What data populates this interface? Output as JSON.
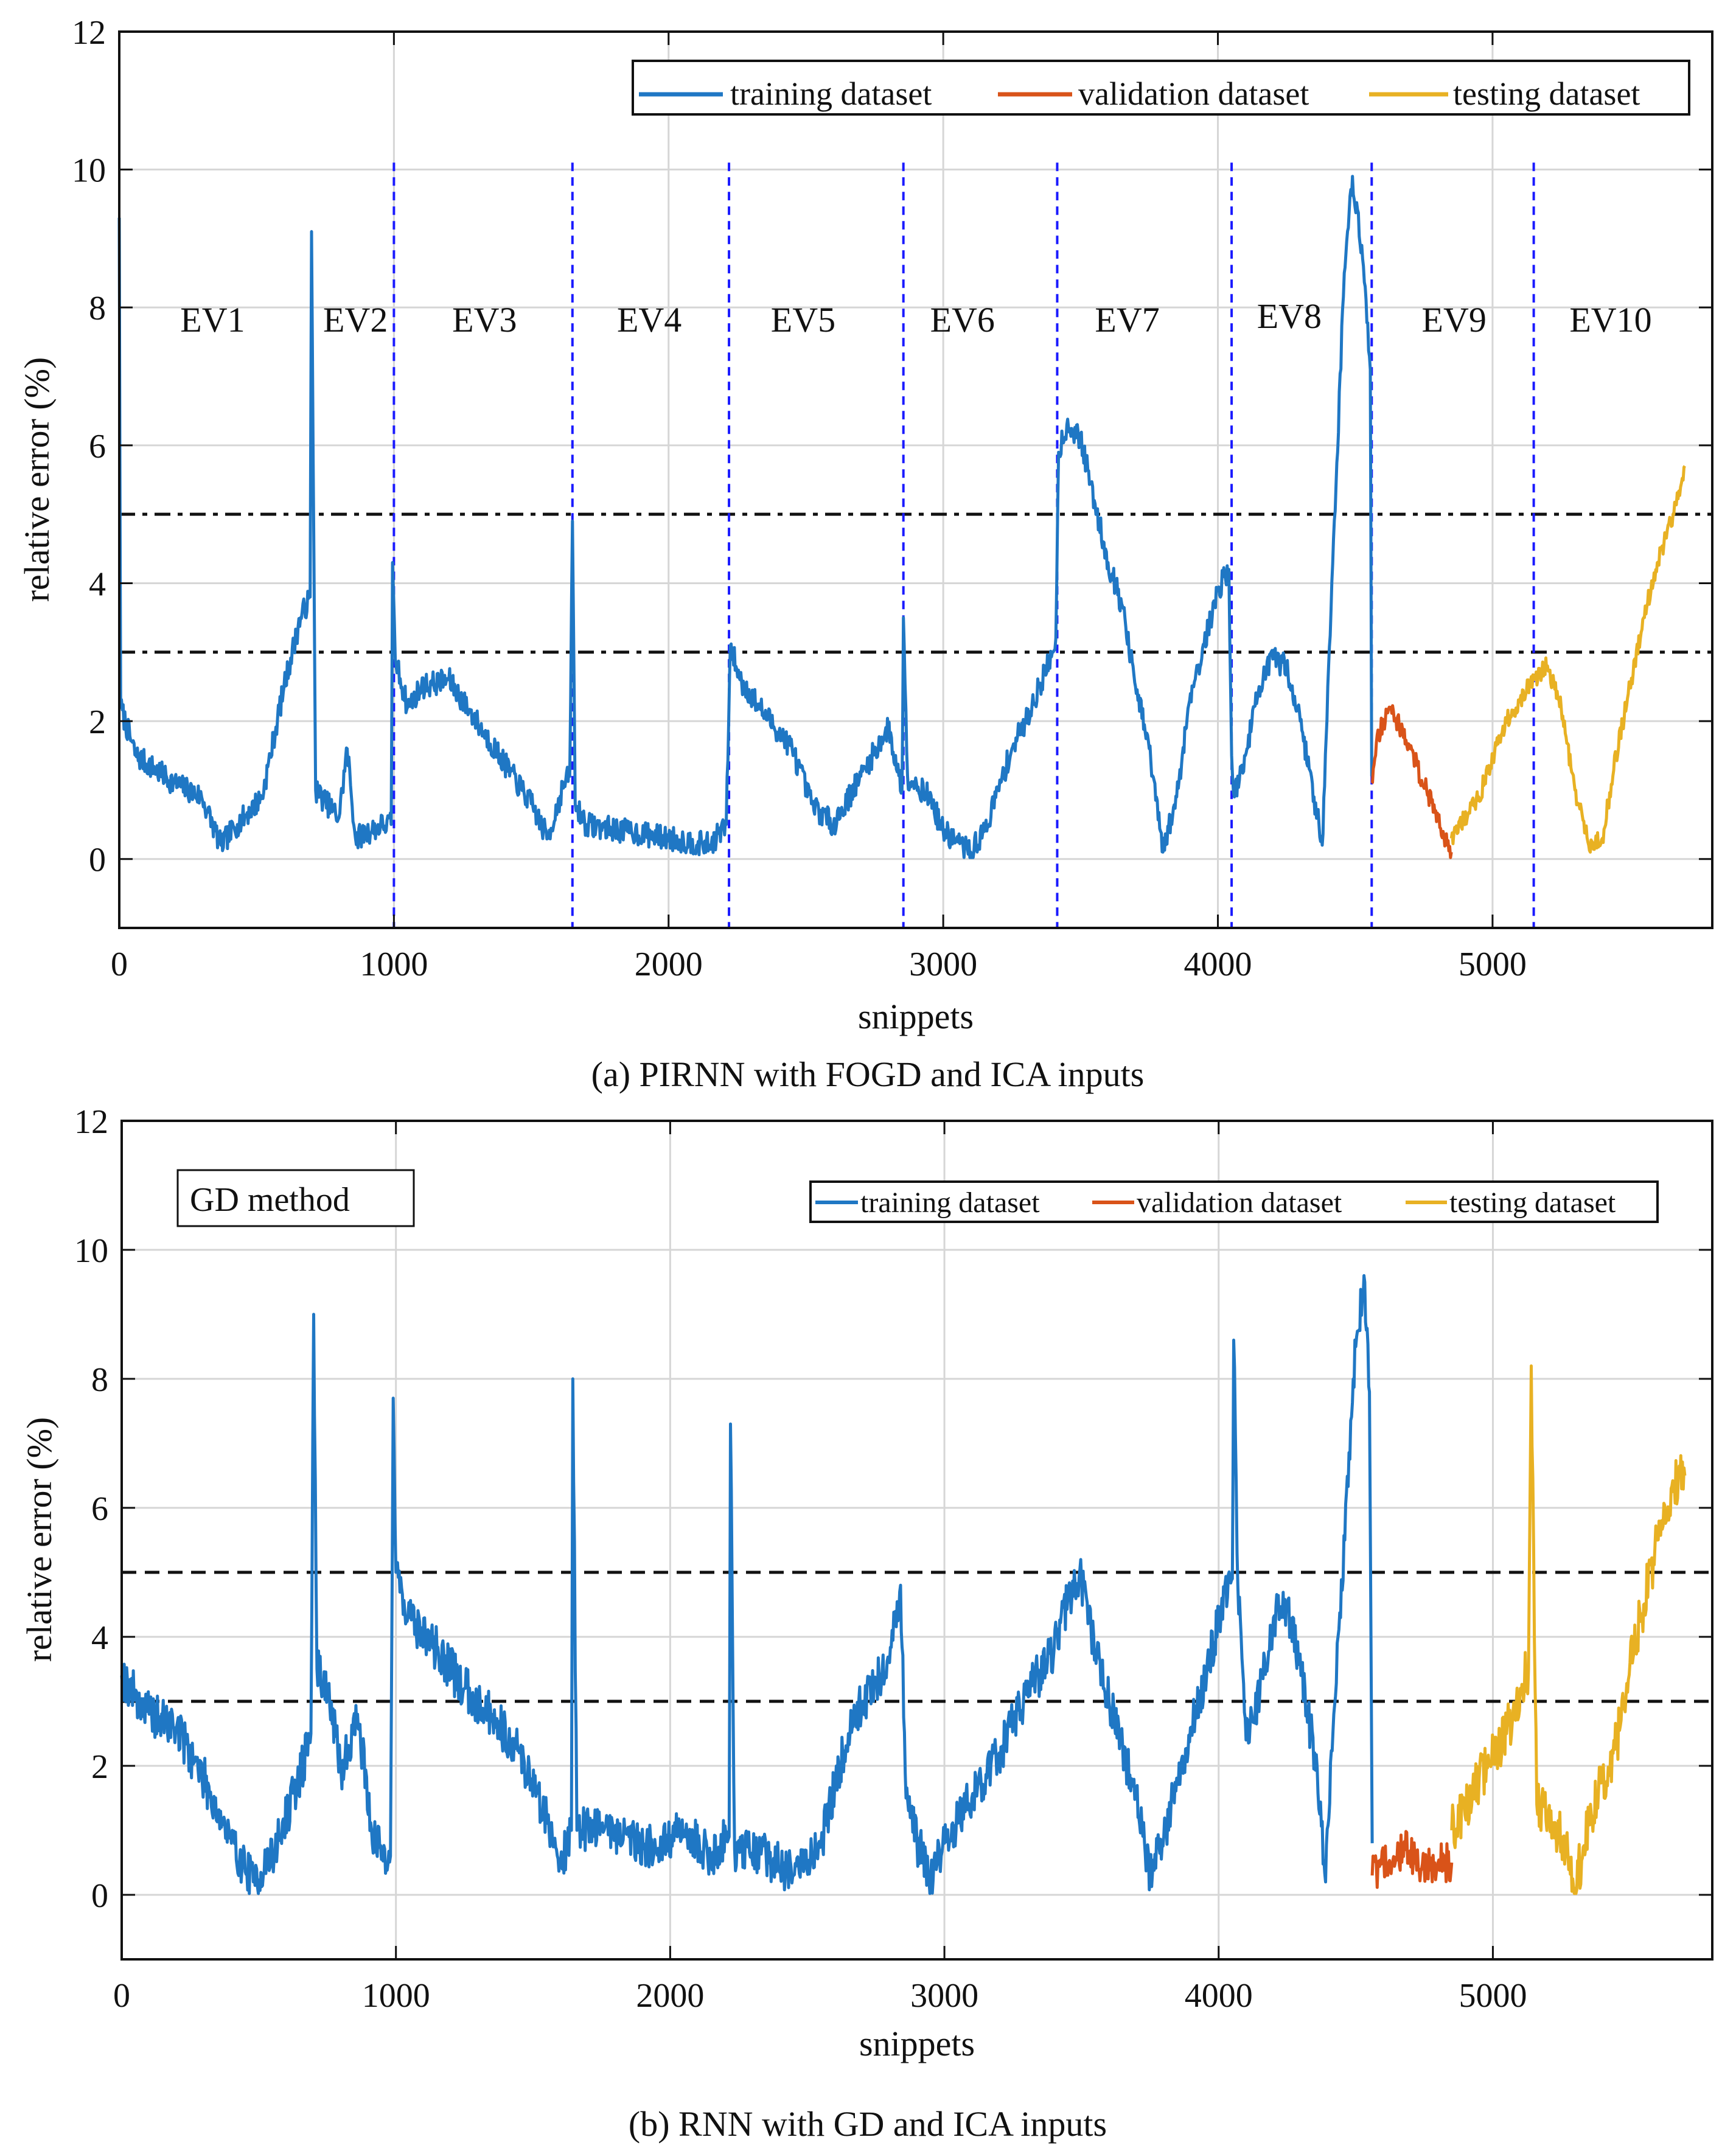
{
  "colors": {
    "training": "#1f77c4",
    "validation": "#d95319",
    "testing": "#e8b123",
    "grid": "#d6d6d6",
    "evline": "#1a1aff",
    "threshold": "#111111"
  },
  "chart_data": [
    {
      "type": "line",
      "id": "a",
      "caption": "(a) PIRNN with FOGD and ICA inputs",
      "xlabel": "snippets",
      "ylabel": "relative error (%)",
      "xlim": [
        0,
        5800
      ],
      "ylim": [
        -1,
        12
      ],
      "xticks": [
        0,
        1000,
        2000,
        3000,
        4000,
        5000
      ],
      "yticks": [
        0,
        2,
        4,
        6,
        8,
        10,
        12
      ],
      "grid": true,
      "legend_position": "top-right",
      "legend": [
        "training dataset",
        "validation dataset",
        "testing dataset"
      ],
      "thresholds": [
        5,
        3
      ],
      "threshold_style": [
        "dash-dot",
        "dash-dot"
      ],
      "ev_boundaries": [
        1000,
        1650,
        2220,
        2855,
        3415,
        4050,
        4560,
        5150
      ],
      "ev_labels": [
        {
          "text": "EV1",
          "x": 340,
          "y": 7.65
        },
        {
          "text": "EV2",
          "x": 860,
          "y": 7.65
        },
        {
          "text": "EV3",
          "x": 1330,
          "y": 7.65
        },
        {
          "text": "EV4",
          "x": 1930,
          "y": 7.65
        },
        {
          "text": "EV5",
          "x": 2490,
          "y": 7.65
        },
        {
          "text": "EV6",
          "x": 3070,
          "y": 7.65
        },
        {
          "text": "EV7",
          "x": 3670,
          "y": 7.65
        },
        {
          "text": "EV8",
          "x": 4260,
          "y": 7.7
        },
        {
          "text": "EV9",
          "x": 4860,
          "y": 7.65
        },
        {
          "text": "EV10",
          "x": 5430,
          "y": 7.65
        }
      ],
      "series": [
        {
          "name": "training dataset",
          "color_key": "training",
          "noise": 0.18,
          "points": [
            [
              0,
              9.3
            ],
            [
              5,
              2.2
            ],
            [
              60,
              1.5
            ],
            [
              200,
              1.1
            ],
            [
              300,
              0.9
            ],
            [
              370,
              0.2
            ],
            [
              430,
              0.5
            ],
            [
              520,
              0.9
            ],
            [
              600,
              2.5
            ],
            [
              660,
              3.5
            ],
            [
              695,
              3.8
            ],
            [
              700,
              9.1
            ],
            [
              715,
              1.0
            ],
            [
              800,
              0.6
            ],
            [
              830,
              1.6
            ],
            [
              860,
              0.3
            ],
            [
              960,
              0.5
            ],
            [
              990,
              0.5
            ],
            [
              995,
              4.3
            ],
            [
              1005,
              2.9
            ],
            [
              1050,
              2.2
            ],
            [
              1100,
              2.5
            ],
            [
              1200,
              2.6
            ],
            [
              1300,
              2.0
            ],
            [
              1400,
              1.4
            ],
            [
              1500,
              0.8
            ],
            [
              1560,
              0.3
            ],
            [
              1620,
              1.1
            ],
            [
              1640,
              1.2
            ],
            [
              1650,
              4.9
            ],
            [
              1660,
              0.8
            ],
            [
              1700,
              0.5
            ],
            [
              1850,
              0.4
            ],
            [
              2000,
              0.3
            ],
            [
              2150,
              0.2
            ],
            [
              2210,
              0.5
            ],
            [
              2225,
              3.1
            ],
            [
              2260,
              2.6
            ],
            [
              2350,
              2.1
            ],
            [
              2450,
              1.6
            ],
            [
              2520,
              0.8
            ],
            [
              2600,
              0.5
            ],
            [
              2700,
              1.2
            ],
            [
              2800,
              1.9
            ],
            [
              2850,
              1.0
            ],
            [
              2855,
              3.5
            ],
            [
              2870,
              1.2
            ],
            [
              2950,
              0.9
            ],
            [
              3000,
              0.4
            ],
            [
              3100,
              0.1
            ],
            [
              3150,
              0.4
            ],
            [
              3200,
              1.0
            ],
            [
              3250,
              1.6
            ],
            [
              3300,
              2.0
            ],
            [
              3350,
              2.5
            ],
            [
              3400,
              3.0
            ],
            [
              3410,
              3.2
            ],
            [
              3420,
              5.9
            ],
            [
              3450,
              6.3
            ],
            [
              3500,
              6.1
            ],
            [
              3550,
              5.2
            ],
            [
              3600,
              4.3
            ],
            [
              3650,
              3.7
            ],
            [
              3700,
              2.5
            ],
            [
              3750,
              1.6
            ],
            [
              3800,
              0.1
            ],
            [
              3850,
              0.9
            ],
            [
              3900,
              2.4
            ],
            [
              3950,
              3.1
            ],
            [
              4000,
              3.9
            ],
            [
              4040,
              4.2
            ],
            [
              4050,
              1.5
            ],
            [
              4060,
              0.9
            ],
            [
              4100,
              1.5
            ],
            [
              4150,
              2.5
            ],
            [
              4200,
              2.9
            ],
            [
              4250,
              2.8
            ],
            [
              4300,
              2.0
            ],
            [
              4350,
              0.9
            ],
            [
              4380,
              0.2
            ],
            [
              4400,
              2.5
            ],
            [
              4430,
              5.4
            ],
            [
              4460,
              8.5
            ],
            [
              4490,
              9.9
            ],
            [
              4530,
              8.6
            ],
            [
              4555,
              7.1
            ],
            [
              4560,
              1.2
            ]
          ]
        },
        {
          "name": "validation dataset",
          "color_key": "validation",
          "noise": 0.16,
          "points": [
            [
              4560,
              1.1
            ],
            [
              4580,
              1.8
            ],
            [
              4630,
              2.2
            ],
            [
              4700,
              1.6
            ],
            [
              4760,
              1.0
            ],
            [
              4820,
              0.4
            ],
            [
              4850,
              0.1
            ]
          ]
        },
        {
          "name": "testing dataset",
          "color_key": "testing",
          "noise": 0.14,
          "points": [
            [
              4850,
              0.3
            ],
            [
              4950,
              0.9
            ],
            [
              5050,
              2.0
            ],
            [
              5100,
              2.3
            ],
            [
              5150,
              2.6
            ],
            [
              5200,
              2.8
            ],
            [
              5250,
              2.2
            ],
            [
              5300,
              1.0
            ],
            [
              5350,
              0.2
            ],
            [
              5400,
              0.3
            ],
            [
              5450,
              1.5
            ],
            [
              5500,
              2.5
            ],
            [
              5550,
              3.5
            ],
            [
              5600,
              4.3
            ],
            [
              5660,
              5.0
            ],
            [
              5700,
              5.7
            ]
          ]
        }
      ]
    },
    {
      "type": "line",
      "id": "b",
      "caption": "(b) RNN with GD and ICA inputs",
      "xlabel": "snippets",
      "ylabel": "relative error (%)",
      "xlim": [
        0,
        5800
      ],
      "ylim": [
        -1,
        12
      ],
      "xticks": [
        0,
        1000,
        2000,
        3000,
        4000,
        5000
      ],
      "yticks": [
        0,
        2,
        4,
        6,
        8,
        10,
        12
      ],
      "grid": true,
      "legend_position": "top-right",
      "legend": [
        "training dataset",
        "validation dataset",
        "testing dataset"
      ],
      "annotation": "GD method",
      "thresholds": [
        5,
        3
      ],
      "threshold_style": [
        "dash",
        "dash"
      ],
      "series": [
        {
          "name": "training dataset",
          "color_key": "training",
          "noise": 0.35,
          "points": [
            [
              0,
              3.4
            ],
            [
              100,
              2.8
            ],
            [
              200,
              2.6
            ],
            [
              300,
              1.8
            ],
            [
              400,
              0.8
            ],
            [
              480,
              0.2
            ],
            [
              550,
              0.6
            ],
            [
              640,
              1.7
            ],
            [
              690,
              2.5
            ],
            [
              700,
              9.0
            ],
            [
              712,
              3.5
            ],
            [
              750,
              3.2
            ],
            [
              800,
              1.9
            ],
            [
              860,
              2.8
            ],
            [
              920,
              0.8
            ],
            [
              980,
              0.6
            ],
            [
              990,
              7.7
            ],
            [
              1000,
              5.0
            ],
            [
              1050,
              4.3
            ],
            [
              1150,
              3.8
            ],
            [
              1250,
              3.2
            ],
            [
              1350,
              2.8
            ],
            [
              1450,
              2.2
            ],
            [
              1550,
              1.2
            ],
            [
              1600,
              0.5
            ],
            [
              1640,
              1.0
            ],
            [
              1645,
              8.0
            ],
            [
              1660,
              1.0
            ],
            [
              1750,
              1.1
            ],
            [
              1850,
              0.9
            ],
            [
              1950,
              0.7
            ],
            [
              2050,
              1.0
            ],
            [
              2150,
              0.6
            ],
            [
              2215,
              0.9
            ],
            [
              2220,
              7.3
            ],
            [
              2235,
              0.7
            ],
            [
              2350,
              0.6
            ],
            [
              2450,
              0.3
            ],
            [
              2550,
              0.8
            ],
            [
              2600,
              1.7
            ],
            [
              2650,
              2.5
            ],
            [
              2700,
              3.0
            ],
            [
              2750,
              3.3
            ],
            [
              2800,
              3.6
            ],
            [
              2840,
              4.8
            ],
            [
              2860,
              1.5
            ],
            [
              2900,
              0.8
            ],
            [
              2950,
              0.3
            ],
            [
              3000,
              0.8
            ],
            [
              3100,
              1.5
            ],
            [
              3200,
              2.2
            ],
            [
              3300,
              3.1
            ],
            [
              3400,
              3.8
            ],
            [
              3450,
              4.6
            ],
            [
              3500,
              4.9
            ],
            [
              3550,
              3.8
            ],
            [
              3600,
              3.0
            ],
            [
              3650,
              2.3
            ],
            [
              3700,
              1.5
            ],
            [
              3750,
              0.3
            ],
            [
              3800,
              0.9
            ],
            [
              3850,
              1.8
            ],
            [
              3900,
              2.6
            ],
            [
              3950,
              3.3
            ],
            [
              4000,
              4.3
            ],
            [
              4050,
              4.9
            ],
            [
              4055,
              8.6
            ],
            [
              4070,
              4.8
            ],
            [
              4100,
              2.4
            ],
            [
              4150,
              3.1
            ],
            [
              4200,
              4.3
            ],
            [
              4250,
              4.5
            ],
            [
              4300,
              3.4
            ],
            [
              4350,
              2.2
            ],
            [
              4390,
              0.2
            ],
            [
              4420,
              2.8
            ],
            [
              4460,
              5.5
            ],
            [
              4500,
              8.5
            ],
            [
              4530,
              9.6
            ],
            [
              4550,
              7.8
            ],
            [
              4560,
              0.8
            ]
          ]
        },
        {
          "name": "validation dataset",
          "color_key": "validation",
          "noise": 0.3,
          "points": [
            [
              4560,
              0.3
            ],
            [
              4620,
              0.5
            ],
            [
              4680,
              0.7
            ],
            [
              4740,
              0.4
            ],
            [
              4800,
              0.5
            ],
            [
              4850,
              0.5
            ]
          ]
        },
        {
          "name": "testing dataset",
          "color_key": "testing",
          "noise": 0.4,
          "points": [
            [
              4850,
              1.0
            ],
            [
              4950,
              1.8
            ],
            [
              5050,
              2.5
            ],
            [
              5100,
              3.2
            ],
            [
              5130,
              3.5
            ],
            [
              5140,
              8.2
            ],
            [
              5160,
              1.4
            ],
            [
              5200,
              1.3
            ],
            [
              5250,
              0.9
            ],
            [
              5300,
              0.1
            ],
            [
              5350,
              1.2
            ],
            [
              5400,
              1.8
            ],
            [
              5450,
              2.3
            ],
            [
              5500,
              3.6
            ],
            [
              5550,
              4.5
            ],
            [
              5600,
              5.5
            ],
            [
              5650,
              6.3
            ],
            [
              5700,
              6.5
            ]
          ]
        }
      ]
    }
  ]
}
